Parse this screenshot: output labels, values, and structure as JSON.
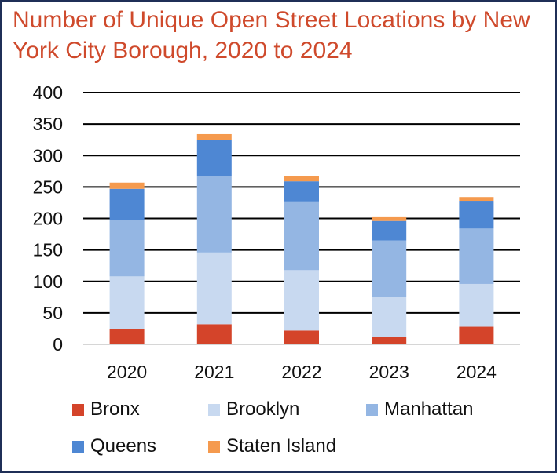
{
  "chart_data": {
    "type": "bar",
    "stacked": true,
    "title": "Number of Unique Open Street Locations by New York City Borough, 2020 to 2024",
    "categories": [
      "2020",
      "2021",
      "2022",
      "2023",
      "2024"
    ],
    "ylim": [
      0,
      400
    ],
    "yticks": [
      "0",
      "50",
      "100",
      "150",
      "200",
      "250",
      "300",
      "350",
      "400"
    ],
    "grid": true,
    "legend_position": "bottom",
    "series": [
      {
        "name": "Bronx",
        "color": "#d4442a",
        "values": [
          24,
          32,
          22,
          12,
          28
        ]
      },
      {
        "name": "Brooklyn",
        "color": "#c8d9f0",
        "values": [
          84,
          114,
          96,
          64,
          68
        ]
      },
      {
        "name": "Manhattan",
        "color": "#94b6e3",
        "values": [
          89,
          121,
          109,
          89,
          88
        ]
      },
      {
        "name": "Queens",
        "color": "#4e87d3",
        "values": [
          50,
          57,
          32,
          31,
          44
        ]
      },
      {
        "name": "Staten Island",
        "color": "#f59a4e",
        "values": [
          10,
          10,
          8,
          6,
          6
        ]
      }
    ]
  }
}
